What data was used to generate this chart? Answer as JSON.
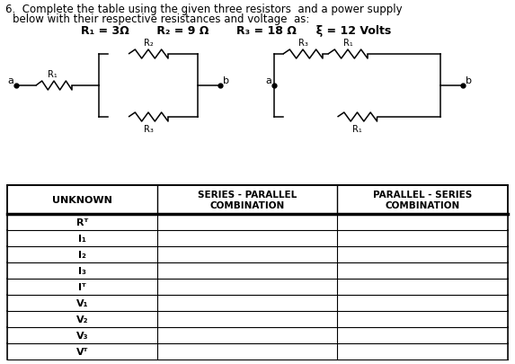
{
  "title_line1": "6.  Complete the table using the given three resistors  and a power supply",
  "title_line2": "     below with their respective resistances and voltage  as:",
  "title_line3_parts": [
    {
      "text": "R",
      "sub": "1",
      "rest": " = 3Ω"
    },
    {
      "text": "   R",
      "sub": "2",
      "rest": " = 9 Ω"
    },
    {
      "text": "   R",
      "sub": "3",
      "rest": " = 18 Ω"
    },
    {
      "text": "   ξ = 12 Volts",
      "sub": "",
      "rest": ""
    }
  ],
  "table_headers": [
    "UNKNOWN",
    "SERIES - PARALLEL\nCOMBINATION",
    "PARALLEL - SERIES\nCOMBINATION"
  ],
  "table_rows": [
    "Rᵀ",
    "I₁",
    "I₂",
    "I₃",
    "Iᵀ",
    "V₁",
    "V₂",
    "V₃",
    "Vᵀ"
  ],
  "bg_color": "#ffffff",
  "text_color": "#000000"
}
